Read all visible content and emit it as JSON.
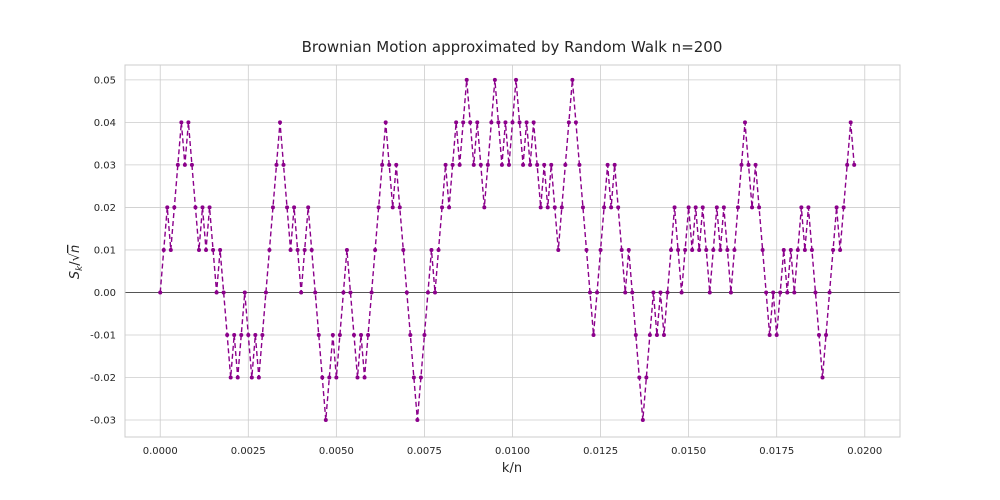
{
  "chart_data": {
    "type": "line",
    "title": "Brownian Motion approximated by Random Walk n=200",
    "xlabel": "k/n",
    "ylabel": {
      "base": "S",
      "sub": "k",
      "tail": "/√",
      "over": "n"
    },
    "xlim": [
      -0.001,
      0.021
    ],
    "ylim": [
      -0.034,
      0.0535
    ],
    "grid": true,
    "xticks": [
      0.0,
      0.0025,
      0.005,
      0.0075,
      0.01,
      0.0125,
      0.015,
      0.0175,
      0.02
    ],
    "xtick_labels": [
      "0.0000",
      "0.0025",
      "0.0050",
      "0.0075",
      "0.0100",
      "0.0125",
      "0.0150",
      "0.0175",
      "0.0200"
    ],
    "yticks": [
      -0.03,
      -0.02,
      -0.01,
      0.0,
      0.01,
      0.02,
      0.03,
      0.04,
      0.05
    ],
    "ytick_labels": [
      "-0.03",
      "-0.02",
      "-0.01",
      "0.00",
      "0.01",
      "0.02",
      "0.03",
      "0.04",
      "0.05"
    ],
    "reference_line": {
      "y": 0,
      "color": "#555555"
    },
    "series": [
      {
        "color": "#8b008b",
        "style": "dashed",
        "marker": "dot",
        "x_step": 0.0001,
        "x_start": 0.0,
        "y": [
          0,
          0.01,
          0.02,
          0.01,
          0.02,
          0.03,
          0.04,
          0.03,
          0.04,
          0.03,
          0.02,
          0.01,
          0.02,
          0.01,
          0.02,
          0.01,
          0,
          0.01,
          0,
          -0.01,
          -0.02,
          -0.01,
          -0.02,
          -0.01,
          0,
          -0.01,
          -0.02,
          -0.01,
          -0.02,
          -0.01,
          0,
          0.01,
          0.02,
          0.03,
          0.04,
          0.03,
          0.02,
          0.01,
          0.02,
          0.01,
          0,
          0.01,
          0.02,
          0.01,
          0,
          -0.01,
          -0.02,
          -0.03,
          -0.02,
          -0.01,
          -0.02,
          -0.01,
          0,
          0.01,
          0,
          -0.01,
          -0.02,
          -0.01,
          -0.02,
          -0.01,
          0,
          0.01,
          0.02,
          0.03,
          0.04,
          0.03,
          0.02,
          0.03,
          0.02,
          0.01,
          0,
          -0.01,
          -0.02,
          -0.03,
          -0.02,
          -0.01,
          0,
          0.01,
          0,
          0.01,
          0.02,
          0.03,
          0.02,
          0.03,
          0.04,
          0.03,
          0.04,
          0.05,
          0.04,
          0.03,
          0.04,
          0.03,
          0.02,
          0.03,
          0.04,
          0.05,
          0.04,
          0.03,
          0.04,
          0.03,
          0.04,
          0.05,
          0.04,
          0.03,
          0.04,
          0.03,
          0.04,
          0.03,
          0.02,
          0.03,
          0.02,
          0.03,
          0.02,
          0.01,
          0.02,
          0.03,
          0.04,
          0.05,
          0.04,
          0.03,
          0.02,
          0.01,
          0,
          -0.01,
          0,
          0.01,
          0.02,
          0.03,
          0.02,
          0.03,
          0.02,
          0.01,
          0,
          0.01,
          0,
          -0.01,
          -0.02,
          -0.03,
          -0.02,
          -0.01,
          0,
          -0.01,
          0,
          -0.01,
          0,
          0.01,
          0.02,
          0.01,
          0,
          0.01,
          0.02,
          0.01,
          0.02,
          0.01,
          0.02,
          0.01,
          0,
          0.01,
          0.02,
          0.01,
          0.02,
          0.01,
          0,
          0.01,
          0.02,
          0.03,
          0.04,
          0.03,
          0.02,
          0.03,
          0.02,
          0.01,
          0,
          -0.01,
          0,
          -0.01,
          0,
          0.01,
          0,
          0.01,
          0,
          0.01,
          0.02,
          0.01,
          0.02,
          0.01,
          0,
          -0.01,
          -0.02,
          -0.01,
          0,
          0.01,
          0.02,
          0.01,
          0.02,
          0.03,
          0.04,
          0.03
        ]
      }
    ]
  }
}
